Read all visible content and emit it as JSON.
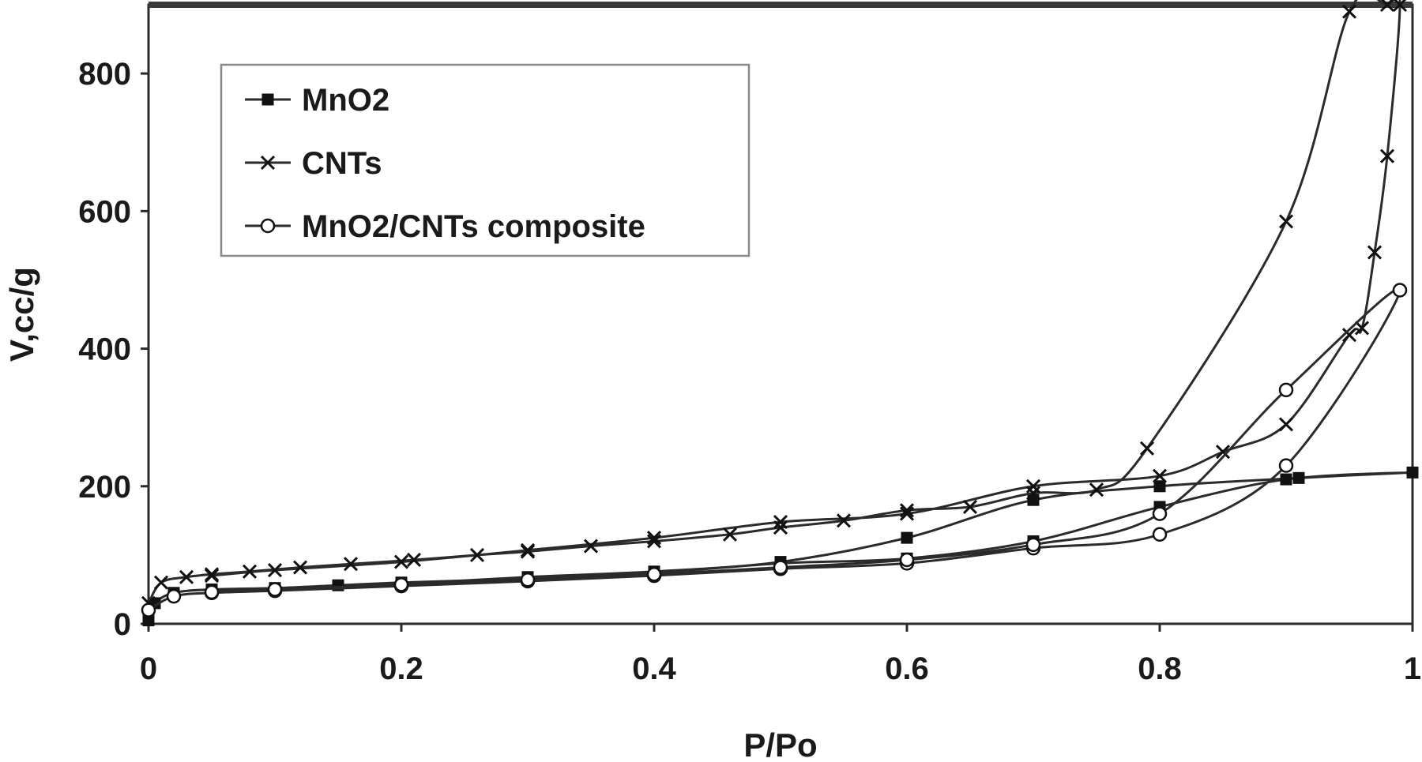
{
  "chart_data": {
    "type": "line",
    "title": "",
    "xlabel": "P/Po",
    "ylabel": "V,cc/g",
    "xlim": [
      0,
      1
    ],
    "ylim": [
      0,
      900
    ],
    "xticks": [
      "0",
      "0.2",
      "0.4",
      "0.6",
      "0.8",
      "1"
    ],
    "yticks": [
      "0",
      "200",
      "400",
      "600",
      "800"
    ],
    "grid": false,
    "legend_position": "top-left",
    "line_color": "#2b2b2b",
    "series": [
      {
        "name": "MnO2",
        "marker": "filled-square",
        "x": [
          0.0,
          0.005,
          0.02,
          0.05,
          0.1,
          0.15,
          0.2,
          0.3,
          0.4,
          0.5,
          0.6,
          0.7,
          0.8,
          0.9,
          1.0,
          0.91,
          0.8,
          0.7,
          0.6,
          0.5,
          0.4,
          0.3,
          0.2,
          0.1,
          0.05
        ],
        "y": [
          5,
          30,
          45,
          50,
          52,
          56,
          60,
          66,
          74,
          88,
          95,
          120,
          170,
          210,
          220,
          212,
          200,
          180,
          125,
          90,
          76,
          68,
          58,
          51,
          47
        ]
      },
      {
        "name": "CNTs",
        "marker": "x-cross",
        "x": [
          0.0,
          0.01,
          0.03,
          0.05,
          0.08,
          0.12,
          0.16,
          0.21,
          0.26,
          0.3,
          0.35,
          0.4,
          0.46,
          0.5,
          0.55,
          0.6,
          0.65,
          0.7,
          0.75,
          0.79,
          0.9,
          0.95,
          0.98,
          0.99,
          0.98,
          0.97,
          0.96,
          0.95,
          0.9,
          0.85,
          0.8,
          0.7,
          0.6,
          0.5,
          0.4,
          0.3,
          0.2,
          0.1,
          0.05
        ],
        "y": [
          30,
          60,
          68,
          72,
          76,
          82,
          87,
          93,
          100,
          105,
          113,
          120,
          130,
          140,
          150,
          165,
          170,
          190,
          195,
          255,
          585,
          890,
          900,
          900,
          680,
          540,
          430,
          420,
          290,
          250,
          215,
          200,
          160,
          148,
          125,
          107,
          90,
          78,
          70
        ]
      },
      {
        "name": "MnO2/CNTs composite",
        "marker": "open-circle",
        "x": [
          0.0,
          0.02,
          0.05,
          0.1,
          0.2,
          0.3,
          0.4,
          0.5,
          0.6,
          0.7,
          0.8,
          0.9,
          0.99,
          0.9,
          0.8,
          0.7,
          0.6,
          0.5,
          0.4,
          0.3,
          0.2,
          0.1,
          0.05
        ],
        "y": [
          20,
          40,
          45,
          48,
          55,
          62,
          70,
          80,
          88,
          110,
          130,
          230,
          485,
          340,
          160,
          115,
          93,
          82,
          72,
          64,
          57,
          50,
          46
        ]
      }
    ]
  }
}
